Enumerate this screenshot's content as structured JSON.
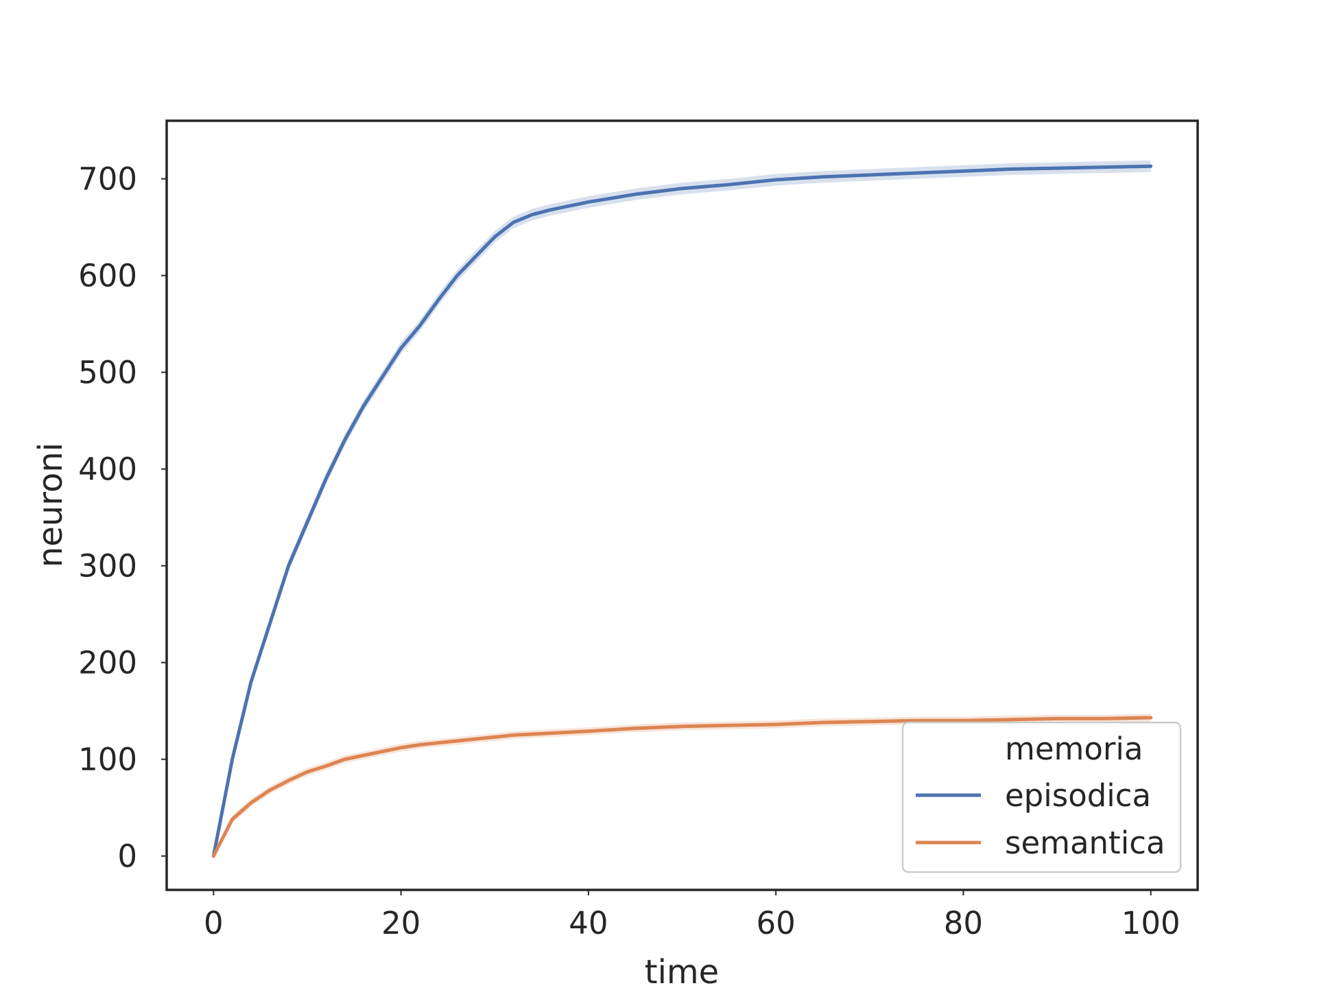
{
  "chart_data": {
    "type": "line",
    "title": "",
    "xlabel": "time",
    "ylabel": "neuroni",
    "xlim": [
      -5,
      105
    ],
    "ylim": [
      -35,
      760
    ],
    "xticks": [
      0,
      20,
      40,
      60,
      80,
      100
    ],
    "yticks": [
      0,
      100,
      200,
      300,
      400,
      500,
      600,
      700
    ],
    "xtick_labels": [
      "0",
      "20",
      "40",
      "60",
      "80",
      "100"
    ],
    "ytick_labels": [
      "0",
      "100",
      "200",
      "300",
      "400",
      "500",
      "600",
      "700"
    ],
    "grid": false,
    "legend": {
      "title": "memoria",
      "position": "lower-right",
      "entries": [
        "episodica",
        "semantica"
      ]
    },
    "x": [
      0,
      2,
      4,
      6,
      8,
      10,
      12,
      14,
      16,
      18,
      20,
      22,
      24,
      26,
      28,
      30,
      32,
      34,
      36,
      38,
      40,
      45,
      50,
      55,
      60,
      65,
      70,
      75,
      80,
      85,
      90,
      95,
      100
    ],
    "series": [
      {
        "name": "episodica",
        "color": "#4c72b0",
        "values": [
          0,
          100,
          180,
          240,
          300,
          345,
          390,
          430,
          465,
          495,
          525,
          548,
          575,
          600,
          620,
          640,
          655,
          663,
          668,
          672,
          676,
          684,
          690,
          694,
          699,
          702,
          704,
          706,
          708,
          710,
          711,
          712,
          713
        ],
        "ci_halfwidth": 6
      },
      {
        "name": "semantica",
        "color": "#dd8452",
        "values": [
          0,
          38,
          55,
          68,
          78,
          87,
          93,
          100,
          104,
          108,
          112,
          115,
          117,
          119,
          121,
          123,
          125,
          126,
          127,
          128,
          129,
          132,
          134,
          135,
          136,
          138,
          139,
          140,
          140,
          141,
          142,
          142,
          143
        ],
        "ci_halfwidth": 4
      }
    ]
  }
}
